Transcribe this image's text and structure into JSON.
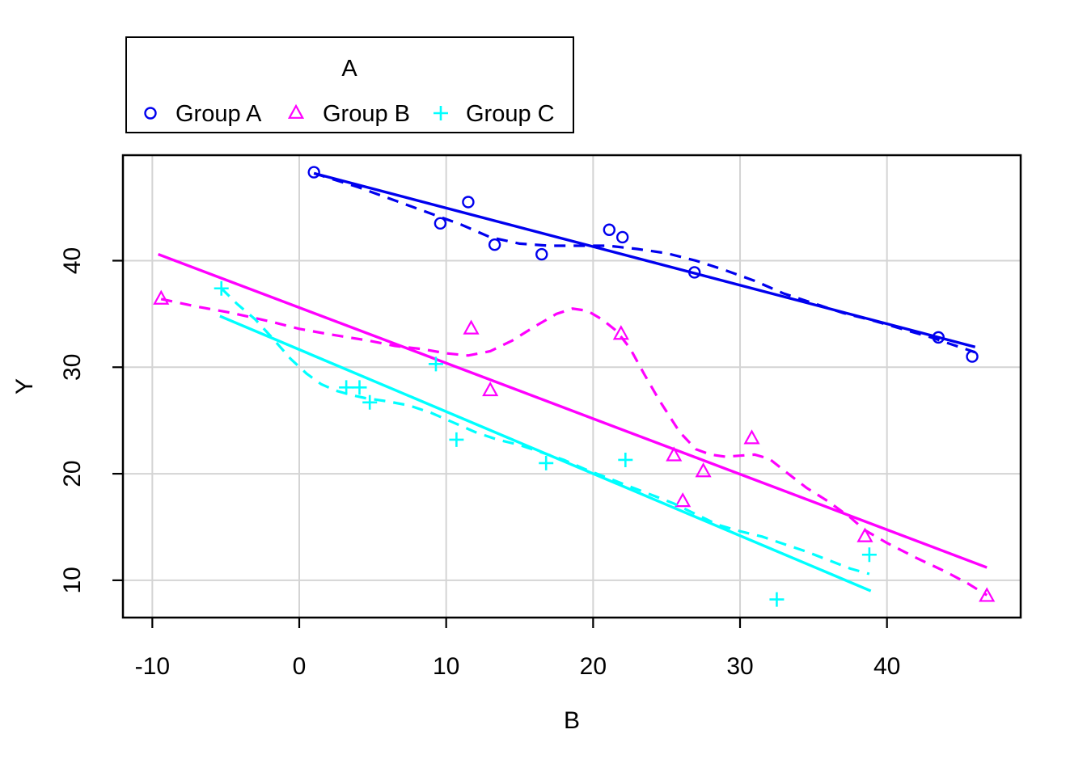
{
  "chart_data": {
    "type": "scatter",
    "title": "",
    "xlabel": "B",
    "ylabel": "Y",
    "x_ticks": [
      -10,
      0,
      10,
      20,
      30,
      40
    ],
    "y_ticks": [
      10,
      20,
      30,
      40
    ],
    "x_domain": [
      -12.0,
      49.1
    ],
    "y_domain": [
      6.5,
      49.9
    ],
    "grid": true,
    "grid_color": "#d4d4d4",
    "frame_color": "#000000",
    "background": "#ffffff",
    "legend": {
      "title": "A",
      "position": "top-left",
      "items": [
        {
          "label": "Group A",
          "marker": "circle",
          "color": "#0000EE"
        },
        {
          "label": "Group B",
          "marker": "triangle",
          "color": "#FF00FF"
        },
        {
          "label": "Group C",
          "marker": "plus",
          "color": "#00FFFF"
        }
      ]
    },
    "series": [
      {
        "name": "Group A",
        "marker": "circle",
        "color": "#0000EE",
        "points": [
          [
            1,
            48.3
          ],
          [
            9.6,
            43.5
          ],
          [
            11.5,
            45.5
          ],
          [
            13.3,
            41.5
          ],
          [
            16.5,
            40.6
          ],
          [
            21.1,
            42.9
          ],
          [
            22,
            42.2
          ],
          [
            26.9,
            38.9
          ],
          [
            43.5,
            32.8
          ],
          [
            45.8,
            31.0
          ]
        ],
        "lm": [
          [
            1,
            48.2
          ],
          [
            46,
            31.9
          ]
        ],
        "loess": [
          [
            1,
            48.2
          ],
          [
            4,
            46.9
          ],
          [
            7,
            45.4
          ],
          [
            9,
            44.4
          ],
          [
            11,
            43.4
          ],
          [
            13,
            42.2
          ],
          [
            15,
            41.6
          ],
          [
            17,
            41.4
          ],
          [
            19,
            41.4
          ],
          [
            21,
            41.4
          ],
          [
            23,
            41.1
          ],
          [
            25,
            40.7
          ],
          [
            27,
            40.0
          ],
          [
            29,
            39.1
          ],
          [
            31,
            38.1
          ],
          [
            33,
            36.9
          ],
          [
            35,
            36.0
          ],
          [
            37,
            35.1
          ],
          [
            39,
            34.4
          ],
          [
            41,
            33.6
          ],
          [
            43,
            32.8
          ],
          [
            44.5,
            32.1
          ],
          [
            46,
            31.4
          ]
        ]
      },
      {
        "name": "Group B",
        "marker": "triangle",
        "color": "#FF00FF",
        "points": [
          [
            -9.4,
            36.4
          ],
          [
            11.7,
            33.6
          ],
          [
            13,
            27.8
          ],
          [
            21.9,
            33.1
          ],
          [
            25.5,
            21.7
          ],
          [
            26.1,
            17.4
          ],
          [
            27.5,
            20.2
          ],
          [
            30.8,
            23.3
          ],
          [
            38.5,
            14.1
          ],
          [
            46.8,
            8.5
          ]
        ],
        "lm": [
          [
            -9.6,
            40.6
          ],
          [
            46.8,
            11.2
          ]
        ],
        "loess": [
          [
            -9.4,
            36.4
          ],
          [
            -7,
            35.7
          ],
          [
            -4.6,
            35.1
          ],
          [
            -2,
            34.3
          ],
          [
            0,
            33.6
          ],
          [
            2,
            33.1
          ],
          [
            4.7,
            32.5
          ],
          [
            6.5,
            32.0
          ],
          [
            8.4,
            31.7
          ],
          [
            10,
            31.3
          ],
          [
            11.5,
            31.1
          ],
          [
            13,
            31.5
          ],
          [
            14.5,
            32.5
          ],
          [
            16,
            33.8
          ],
          [
            17.5,
            35.0
          ],
          [
            18.6,
            35.5
          ],
          [
            19.6,
            35.3
          ],
          [
            20.6,
            34.5
          ],
          [
            21.6,
            33.4
          ],
          [
            22.5,
            31.8
          ],
          [
            23.5,
            29.3
          ],
          [
            24.5,
            26.9
          ],
          [
            25.9,
            23.9
          ],
          [
            27,
            22.3
          ],
          [
            28,
            21.8
          ],
          [
            29,
            21.6
          ],
          [
            30,
            21.7
          ],
          [
            31,
            21.8
          ],
          [
            32,
            21.4
          ],
          [
            33,
            20.3
          ],
          [
            34.5,
            18.7
          ],
          [
            36,
            17.4
          ],
          [
            37.5,
            15.9
          ],
          [
            38.5,
            14.7
          ],
          [
            40,
            13.5
          ],
          [
            42,
            12.1
          ],
          [
            44,
            10.8
          ],
          [
            45.5,
            9.7
          ],
          [
            46.8,
            8.6
          ]
        ]
      },
      {
        "name": "Group C",
        "marker": "plus",
        "color": "#00FFFF",
        "points": [
          [
            -5.3,
            37.4
          ],
          [
            3.2,
            28.1
          ],
          [
            4.1,
            28.1
          ],
          [
            4.8,
            26.7
          ],
          [
            9.3,
            30.3
          ],
          [
            10.7,
            23.2
          ],
          [
            16.8,
            21.0
          ],
          [
            22.2,
            21.3
          ],
          [
            32.5,
            8.2
          ],
          [
            38.8,
            12.4
          ]
        ],
        "lm": [
          [
            -5.4,
            34.8
          ],
          [
            38.9,
            9.0
          ]
        ],
        "loess": [
          [
            -5.3,
            37.4
          ],
          [
            -4.2,
            35.9
          ],
          [
            -3,
            34.5
          ],
          [
            -1.8,
            32.7
          ],
          [
            -0.6,
            30.8
          ],
          [
            0.5,
            29.4
          ],
          [
            1.5,
            28.4
          ],
          [
            2.5,
            27.8
          ],
          [
            3.5,
            27.4
          ],
          [
            4.5,
            27.1
          ],
          [
            6,
            26.8
          ],
          [
            7.5,
            26.4
          ],
          [
            9,
            25.7
          ],
          [
            10.5,
            24.8
          ],
          [
            12,
            23.9
          ],
          [
            13.5,
            23.2
          ],
          [
            15,
            22.7
          ],
          [
            16.5,
            22.0
          ],
          [
            18,
            21.3
          ],
          [
            19.5,
            20.4
          ],
          [
            21,
            19.6
          ],
          [
            22.5,
            18.8
          ],
          [
            24,
            18.0
          ],
          [
            25.5,
            17.2
          ],
          [
            27,
            16.2
          ],
          [
            28.5,
            15.2
          ],
          [
            30,
            14.6
          ],
          [
            31.5,
            14.1
          ],
          [
            33,
            13.4
          ],
          [
            34.5,
            12.7
          ],
          [
            36,
            11.9
          ],
          [
            37.5,
            11.1
          ],
          [
            38.8,
            10.6
          ]
        ]
      }
    ]
  }
}
